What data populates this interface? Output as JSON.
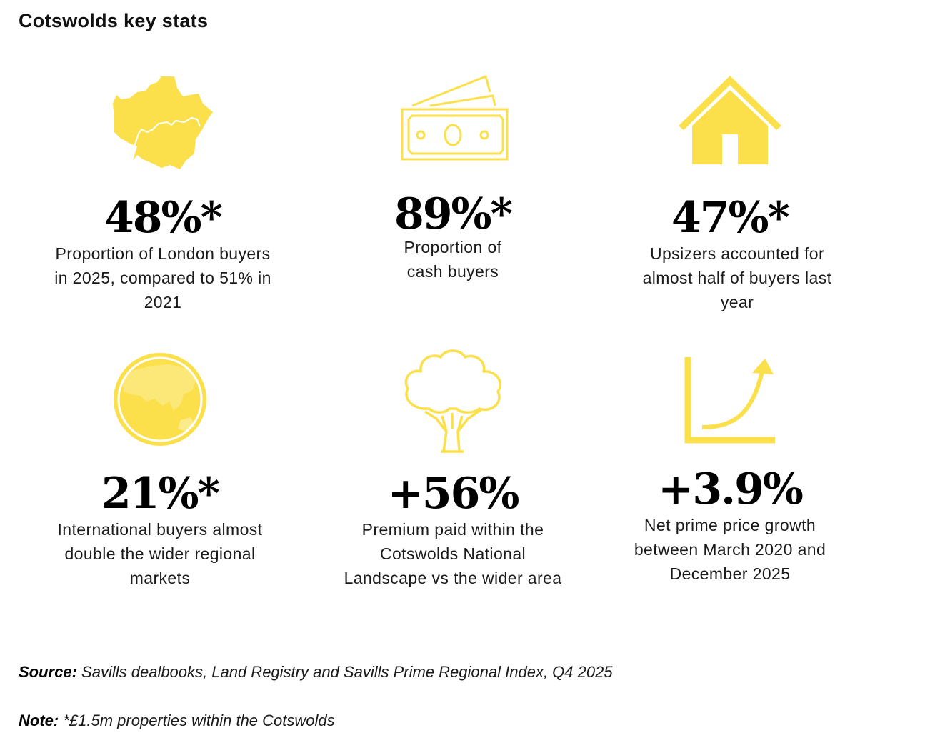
{
  "title": "Cotswolds key stats",
  "accent_color": "#FBE04C",
  "stats": [
    {
      "icon": "london-map-icon",
      "value": "48%*",
      "description": [
        "Proportion of London buyers",
        "in 2025, compared to 51% in",
        "2021"
      ]
    },
    {
      "icon": "cash-banknote-icon",
      "value": "89%*",
      "description": [
        "Proportion of",
        "cash buyers"
      ]
    },
    {
      "icon": "house-icon",
      "value": "47%*",
      "description": [
        "Upsizers accounted for",
        "almost half of buyers last",
        "year"
      ]
    },
    {
      "icon": "globe-icon",
      "value": "21%*",
      "description": [
        "International buyers almost",
        "double the wider regional",
        "markets"
      ]
    },
    {
      "icon": "tree-icon",
      "value": "+56%",
      "description": [
        "Premium paid within the",
        "Cotswolds National",
        "Landscape vs the wider area"
      ]
    },
    {
      "icon": "growth-curve-icon",
      "value": "+3.9%",
      "description": [
        "Net prime price growth",
        "between March 2020 and",
        "December 2025"
      ]
    }
  ],
  "footer": {
    "source_label": "Source:",
    "source_text": "Savills dealbooks, Land Registry and Savills Prime Regional Index, Q4 2025",
    "note_label": "Note:",
    "note_text": "*£1.5m properties within the Cotswolds"
  }
}
